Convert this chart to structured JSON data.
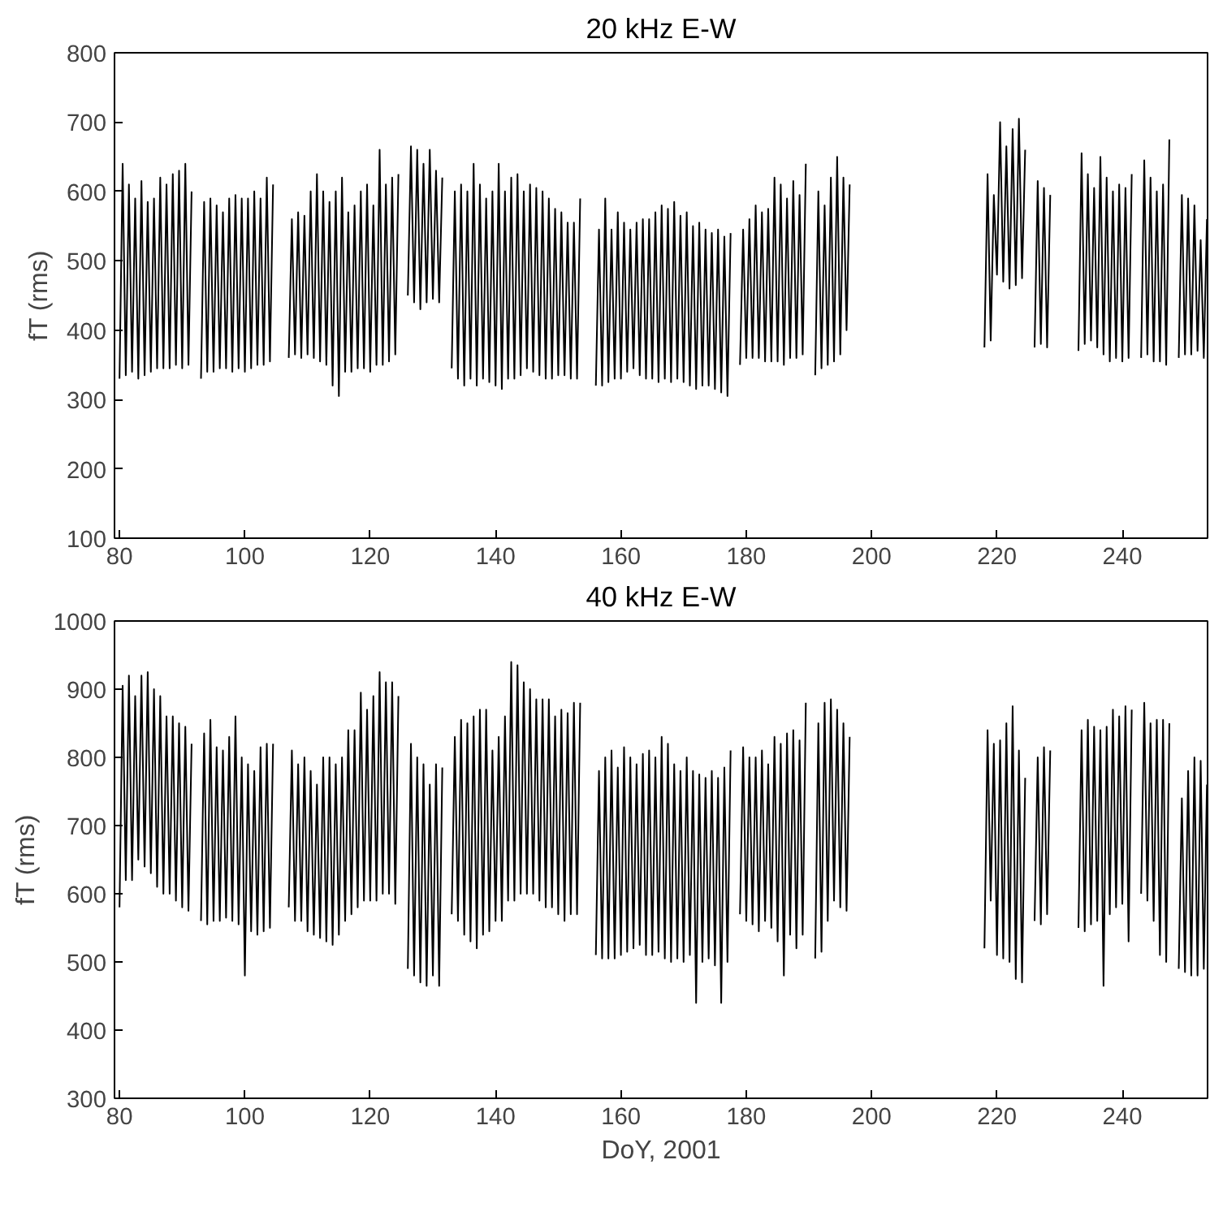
{
  "chart_data": [
    {
      "type": "line",
      "title": "20 kHz E-W",
      "ylabel": "fT (rms)",
      "xlim": [
        79.2,
        253.6
      ],
      "ylim": [
        100,
        800
      ],
      "xticks": [
        80,
        100,
        120,
        140,
        160,
        180,
        200,
        220,
        240
      ],
      "yticks": [
        100,
        200,
        300,
        400,
        500,
        600,
        700,
        800
      ],
      "series": [
        {
          "color": "#000000",
          "x": [
            80,
            80.5,
            81,
            81.5,
            82,
            82.5,
            83,
            83.5,
            84,
            84.5,
            85,
            85.5,
            86,
            86.5,
            87,
            87.5,
            88,
            88.5,
            89,
            89.5,
            90,
            90.5,
            91,
            91.5,
            92.2,
            93,
            93.5,
            94,
            94.5,
            95,
            95.5,
            96,
            96.5,
            97,
            97.5,
            98,
            98.5,
            99,
            99.5,
            100,
            100.5,
            101,
            101.5,
            102,
            102.5,
            103,
            103.5,
            104,
            104.5,
            105.5,
            107,
            107.5,
            108,
            108.5,
            109,
            109.5,
            110,
            110.5,
            111,
            111.5,
            112,
            112.5,
            113,
            113.5,
            114,
            114.5,
            115,
            115.5,
            116,
            116.5,
            117,
            117.5,
            118,
            118.5,
            119,
            119.5,
            120,
            120.5,
            121,
            121.5,
            122,
            122.5,
            123,
            123.5,
            124,
            124.5,
            125.3,
            126,
            126.5,
            127,
            127.5,
            128,
            128.5,
            129,
            129.5,
            130,
            130.5,
            131,
            131.5,
            132.3,
            133,
            133.5,
            134,
            134.5,
            135,
            135.5,
            136,
            136.5,
            137,
            137.5,
            138,
            138.5,
            139,
            139.5,
            140,
            140.5,
            141,
            141.5,
            142,
            142.5,
            143,
            143.5,
            144,
            144.5,
            145,
            145.5,
            146,
            146.5,
            147,
            147.5,
            148,
            148.5,
            149,
            149.5,
            150,
            150.5,
            151,
            151.5,
            152,
            152.5,
            153,
            153.5,
            154.8,
            156,
            156.5,
            157,
            157.5,
            158,
            158.5,
            159,
            159.5,
            160,
            160.5,
            161,
            161.5,
            162,
            162.5,
            163,
            163.5,
            164,
            164.5,
            165,
            165.5,
            166,
            166.5,
            167,
            167.5,
            168,
            168.5,
            169,
            169.5,
            170,
            170.5,
            171,
            171.5,
            172,
            172.5,
            173,
            173.5,
            174,
            174.5,
            175,
            175.5,
            176,
            176.5,
            177,
            177.5,
            178.3,
            179,
            179.5,
            180,
            180.5,
            181,
            181.5,
            182,
            182.5,
            183,
            183.5,
            184,
            184.5,
            185,
            185.5,
            186,
            186.5,
            187,
            187.5,
            188,
            188.5,
            189,
            189.5,
            190.3,
            191,
            191.5,
            192,
            192.5,
            193,
            193.5,
            194,
            194.5,
            195,
            195.5,
            196,
            196.5,
            207,
            218,
            218.5,
            219,
            219.5,
            220,
            220.5,
            221,
            221.5,
            222,
            222.5,
            223,
            223.5,
            224,
            224.5,
            225.3,
            226,
            226.5,
            227,
            227.5,
            228,
            228.5,
            230,
            233,
            233.5,
            234,
            234.5,
            235,
            235.5,
            236,
            236.5,
            237,
            237.5,
            238,
            238.5,
            239,
            239.5,
            240,
            240.5,
            241,
            241.5,
            242.3,
            243,
            243.5,
            244,
            244.5,
            245,
            245.5,
            246,
            246.5,
            247,
            247.5,
            248.3,
            249,
            249.5,
            250,
            250.5,
            251,
            251.5,
            252,
            252.5,
            253,
            253.5
          ],
          "values": [
            330,
            640,
            335,
            610,
            340,
            590,
            330,
            615,
            335,
            585,
            340,
            590,
            345,
            620,
            345,
            610,
            345,
            625,
            350,
            630,
            345,
            640,
            350,
            600,
            null,
            330,
            585,
            340,
            590,
            340,
            580,
            345,
            570,
            345,
            590,
            340,
            595,
            345,
            590,
            340,
            590,
            345,
            600,
            350,
            590,
            350,
            620,
            355,
            610,
            null,
            360,
            560,
            365,
            570,
            360,
            565,
            365,
            600,
            360,
            625,
            355,
            600,
            350,
            585,
            320,
            600,
            305,
            620,
            340,
            570,
            340,
            580,
            345,
            600,
            345,
            610,
            340,
            580,
            350,
            660,
            350,
            610,
            355,
            620,
            365,
            625,
            null,
            450,
            665,
            440,
            660,
            430,
            640,
            440,
            660,
            445,
            630,
            440,
            620,
            null,
            345,
            600,
            330,
            610,
            320,
            600,
            330,
            640,
            320,
            610,
            330,
            590,
            325,
            600,
            320,
            640,
            315,
            600,
            330,
            620,
            330,
            625,
            335,
            600,
            345,
            610,
            340,
            605,
            335,
            600,
            330,
            590,
            330,
            575,
            335,
            570,
            335,
            555,
            330,
            555,
            330,
            590,
            null,
            320,
            545,
            320,
            590,
            325,
            545,
            330,
            570,
            330,
            555,
            340,
            545,
            345,
            555,
            335,
            560,
            330,
            560,
            330,
            570,
            325,
            580,
            330,
            575,
            325,
            585,
            330,
            565,
            325,
            570,
            320,
            550,
            315,
            555,
            320,
            545,
            320,
            540,
            315,
            545,
            310,
            535,
            305,
            540,
            null,
            350,
            545,
            360,
            560,
            360,
            580,
            360,
            570,
            355,
            575,
            355,
            620,
            355,
            610,
            350,
            590,
            360,
            615,
            360,
            595,
            365,
            640,
            null,
            335,
            600,
            345,
            580,
            350,
            620,
            355,
            650,
            365,
            620,
            400,
            610,
            null,
            375,
            625,
            385,
            595,
            480,
            700,
            470,
            665,
            460,
            690,
            465,
            705,
            475,
            660,
            null,
            375,
            615,
            380,
            605,
            375,
            595,
            null,
            370,
            655,
            380,
            625,
            385,
            605,
            375,
            650,
            365,
            620,
            355,
            600,
            360,
            610,
            355,
            605,
            360,
            625,
            null,
            360,
            645,
            365,
            620,
            355,
            600,
            355,
            610,
            350,
            675,
            null,
            360,
            595,
            365,
            590,
            365,
            580,
            370,
            530,
            360,
            560
          ]
        }
      ]
    },
    {
      "type": "line",
      "title": "40 kHz E-W",
      "xlabel": "DoY, 2001",
      "ylabel": "fT (rms)",
      "xlim": [
        79.2,
        253.6
      ],
      "ylim": [
        300,
        1000
      ],
      "xticks": [
        80,
        100,
        120,
        140,
        160,
        180,
        200,
        220,
        240
      ],
      "yticks": [
        300,
        400,
        500,
        600,
        700,
        800,
        900,
        1000
      ],
      "series": [
        {
          "color": "#000000",
          "x": [
            80,
            80.5,
            81,
            81.5,
            82,
            82.5,
            83,
            83.5,
            84,
            84.5,
            85,
            85.5,
            86,
            86.5,
            87,
            87.5,
            88,
            88.5,
            89,
            89.5,
            90,
            90.5,
            91,
            91.5,
            92.2,
            93,
            93.5,
            94,
            94.5,
            95,
            95.5,
            96,
            96.5,
            97,
            97.5,
            98,
            98.5,
            99,
            99.5,
            100,
            100.5,
            101,
            101.5,
            102,
            102.5,
            103,
            103.5,
            104,
            104.5,
            105.5,
            107,
            107.5,
            108,
            108.5,
            109,
            109.5,
            110,
            110.5,
            111,
            111.5,
            112,
            112.5,
            113,
            113.5,
            114,
            114.5,
            115,
            115.5,
            116,
            116.5,
            117,
            117.5,
            118,
            118.5,
            119,
            119.5,
            120,
            120.5,
            121,
            121.5,
            122,
            122.5,
            123,
            123.5,
            124,
            124.5,
            125.3,
            126,
            126.5,
            127,
            127.5,
            128,
            128.5,
            129,
            129.5,
            130,
            130.5,
            131,
            131.5,
            132.3,
            133,
            133.5,
            134,
            134.5,
            135,
            135.5,
            136,
            136.5,
            137,
            137.5,
            138,
            138.5,
            139,
            139.5,
            140,
            140.5,
            141,
            141.5,
            142,
            142.5,
            143,
            143.5,
            144,
            144.5,
            145,
            145.5,
            146,
            146.5,
            147,
            147.5,
            148,
            148.5,
            149,
            149.5,
            150,
            150.5,
            151,
            151.5,
            152,
            152.5,
            153,
            153.5,
            154.8,
            156,
            156.5,
            157,
            157.5,
            158,
            158.5,
            159,
            159.5,
            160,
            160.5,
            161,
            161.5,
            162,
            162.5,
            163,
            163.5,
            164,
            164.5,
            165,
            165.5,
            166,
            166.5,
            167,
            167.5,
            168,
            168.5,
            169,
            169.5,
            170,
            170.5,
            171,
            171.5,
            172,
            172.5,
            173,
            173.5,
            174,
            174.5,
            175,
            175.5,
            176,
            176.5,
            177,
            177.5,
            178.3,
            179,
            179.5,
            180,
            180.5,
            181,
            181.5,
            182,
            182.5,
            183,
            183.5,
            184,
            184.5,
            185,
            185.5,
            186,
            186.5,
            187,
            187.5,
            188,
            188.5,
            189,
            189.5,
            190.3,
            191,
            191.5,
            192,
            192.5,
            193,
            193.5,
            194,
            194.5,
            195,
            195.5,
            196,
            196.5,
            207,
            218,
            218.5,
            219,
            219.5,
            220,
            220.5,
            221,
            221.5,
            222,
            222.5,
            223,
            223.5,
            224,
            224.5,
            225.3,
            226,
            226.5,
            227,
            227.5,
            228,
            228.5,
            230,
            233,
            233.5,
            234,
            234.5,
            235,
            235.5,
            236,
            236.5,
            237,
            237.5,
            238,
            238.5,
            239,
            239.5,
            240,
            240.5,
            241,
            241.5,
            242.3,
            243,
            243.5,
            244,
            244.5,
            245,
            245.5,
            246,
            246.5,
            247,
            247.5,
            248.3,
            249,
            249.5,
            250,
            250.5,
            251,
            251.5,
            252,
            252.5,
            253,
            253.5
          ],
          "values": [
            580,
            905,
            620,
            920,
            620,
            890,
            650,
            920,
            640,
            925,
            630,
            900,
            610,
            890,
            600,
            860,
            600,
            860,
            590,
            850,
            580,
            845,
            575,
            820,
            null,
            560,
            835,
            555,
            855,
            560,
            815,
            560,
            810,
            565,
            830,
            560,
            860,
            555,
            800,
            480,
            790,
            545,
            780,
            540,
            815,
            545,
            820,
            550,
            820,
            null,
            580,
            810,
            560,
            790,
            560,
            800,
            545,
            780,
            540,
            760,
            535,
            800,
            530,
            800,
            525,
            790,
            540,
            800,
            560,
            840,
            570,
            840,
            580,
            895,
            590,
            870,
            590,
            890,
            590,
            925,
            600,
            910,
            600,
            910,
            585,
            890,
            null,
            490,
            820,
            480,
            800,
            470,
            790,
            465,
            760,
            480,
            790,
            465,
            785,
            null,
            570,
            830,
            560,
            855,
            540,
            850,
            530,
            860,
            520,
            870,
            540,
            870,
            545,
            810,
            560,
            830,
            560,
            860,
            590,
            940,
            590,
            935,
            600,
            910,
            600,
            900,
            600,
            885,
            590,
            885,
            580,
            885,
            580,
            860,
            570,
            870,
            560,
            865,
            570,
            880,
            570,
            880,
            null,
            510,
            780,
            505,
            800,
            505,
            810,
            505,
            785,
            510,
            815,
            515,
            800,
            520,
            790,
            525,
            805,
            510,
            810,
            510,
            800,
            515,
            830,
            505,
            820,
            500,
            790,
            505,
            780,
            500,
            800,
            510,
            780,
            440,
            775,
            500,
            770,
            505,
            780,
            495,
            770,
            440,
            785,
            500,
            810,
            null,
            570,
            815,
            560,
            800,
            555,
            800,
            545,
            810,
            560,
            790,
            550,
            830,
            530,
            820,
            480,
            835,
            540,
            840,
            520,
            825,
            540,
            880,
            null,
            505,
            850,
            515,
            880,
            560,
            885,
            590,
            870,
            580,
            850,
            575,
            830,
            null,
            520,
            840,
            590,
            820,
            510,
            825,
            505,
            850,
            500,
            875,
            475,
            810,
            470,
            770,
            null,
            560,
            800,
            555,
            815,
            570,
            810,
            null,
            550,
            840,
            545,
            855,
            555,
            845,
            560,
            840,
            465,
            845,
            570,
            870,
            580,
            860,
            585,
            875,
            530,
            870,
            null,
            600,
            880,
            590,
            850,
            560,
            855,
            510,
            855,
            500,
            850,
            null,
            490,
            740,
            485,
            780,
            480,
            800,
            480,
            795,
            490,
            760
          ]
        }
      ]
    }
  ]
}
